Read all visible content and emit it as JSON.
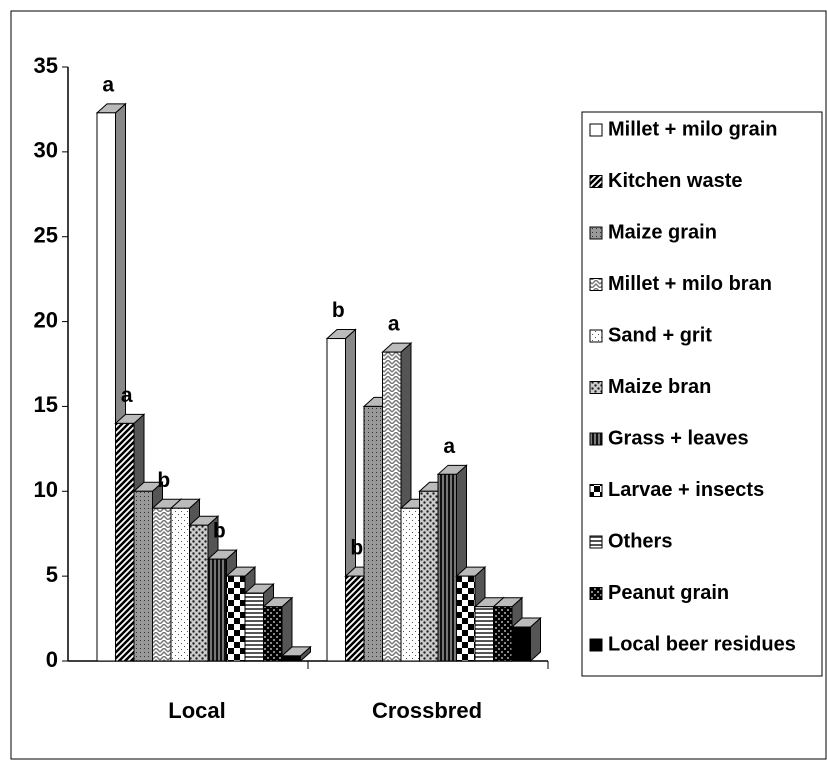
{
  "chart_data": {
    "type": "bar3d",
    "categories": [
      "Local",
      "Crossbred"
    ],
    "ylim": [
      0,
      35
    ],
    "yticks": [
      0,
      5,
      10,
      15,
      20,
      25,
      30,
      35
    ],
    "legend": "right",
    "series": [
      {
        "name": "Millet + milo grain",
        "color": "#ffffff",
        "pattern": "solid",
        "values": [
          32.3,
          19
        ],
        "significance": [
          "a",
          "b"
        ]
      },
      {
        "name": "Kitchen waste",
        "color": "#333333",
        "pattern": "diagonal",
        "values": [
          14,
          5
        ],
        "significance": [
          "a",
          "b"
        ]
      },
      {
        "name": "Maize grain",
        "color": "#888888",
        "pattern": "dots",
        "values": [
          10,
          15
        ],
        "significance": [
          null,
          null
        ]
      },
      {
        "name": "Millet + milo bran",
        "color": "#bbbbbb",
        "pattern": "zigzag",
        "values": [
          9,
          18.2
        ],
        "significance": [
          "b",
          "a"
        ]
      },
      {
        "name": "Sand + grit",
        "color": "#eeeeee",
        "pattern": "sparse",
        "values": [
          9,
          9
        ],
        "significance": [
          null,
          null
        ]
      },
      {
        "name": "Maize bran",
        "color": "#999999",
        "pattern": "bigdots",
        "values": [
          8,
          10
        ],
        "significance": [
          null,
          null
        ]
      },
      {
        "name": "Grass + leaves",
        "color": "#444444",
        "pattern": "vertical",
        "values": [
          6,
          11
        ],
        "significance": [
          "b",
          "a"
        ]
      },
      {
        "name": "Larvae + insects",
        "color": "#000000",
        "pattern": "check",
        "values": [
          5,
          5
        ],
        "significance": [
          null,
          null
        ]
      },
      {
        "name": "Others",
        "color": "#777777",
        "pattern": "horizontal",
        "values": [
          4,
          3.2
        ],
        "significance": [
          null,
          null
        ]
      },
      {
        "name": "Peanut grain",
        "color": "#111111",
        "pattern": "darkcheck",
        "values": [
          3.2,
          3.2
        ],
        "significance": [
          null,
          null
        ]
      },
      {
        "name": "Local beer residues",
        "color": "#000000",
        "pattern": "solid",
        "values": [
          0.3,
          2
        ],
        "significance": [
          null,
          null
        ]
      }
    ]
  }
}
